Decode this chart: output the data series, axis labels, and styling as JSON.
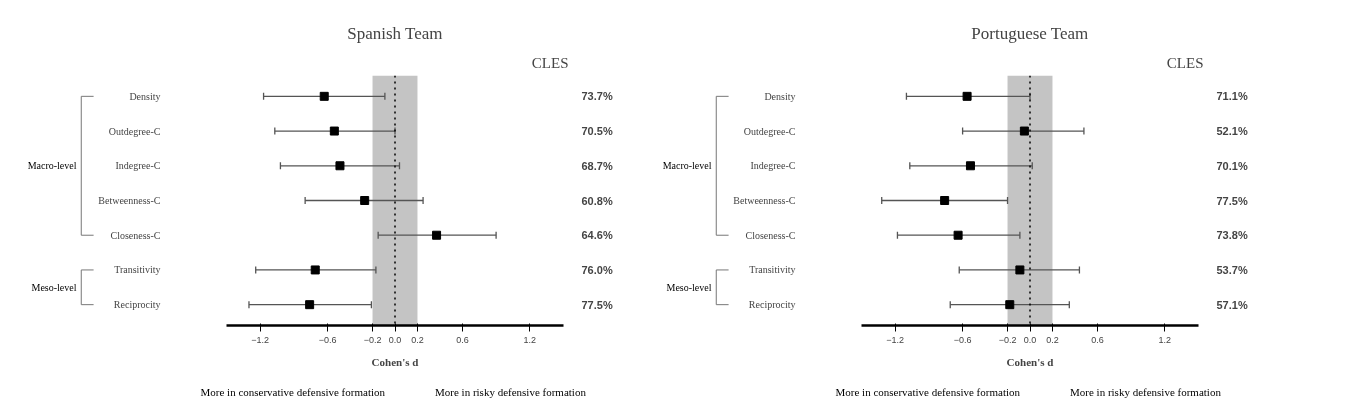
{
  "chart_data": [
    {
      "type": "scatter",
      "orientation": "horizontal",
      "title": "Spanish Team",
      "xlabel": "Cohen's d",
      "categories": [
        "Density",
        "Outdegree-C",
        "Indegree-C",
        "Betweenness-C",
        "Closeness-C",
        "Transitivity",
        "Reciprocity"
      ],
      "values": [
        -0.63,
        -0.54,
        -0.49,
        -0.27,
        0.37,
        -0.71,
        -0.76
      ],
      "errors": [
        [
          -1.17,
          -0.09
        ],
        [
          -1.07,
          0.0
        ],
        [
          -1.02,
          0.04
        ],
        [
          -0.8,
          0.25
        ],
        [
          -0.15,
          0.9
        ],
        [
          -1.24,
          -0.17
        ],
        [
          -1.3,
          -0.21
        ]
      ],
      "color": "#000000",
      "marker": "square",
      "xlim": [
        -1.5,
        1.5
      ],
      "xticks": [
        -1.2,
        -0.6,
        -0.2,
        {
          "value": 0,
          "label": "0.0"
        },
        0.2,
        0.6,
        1.2
      ],
      "bands": [
        {
          "axis": "x",
          "from": -0.2,
          "to": 0.2,
          "color": "#c4c4c4"
        }
      ],
      "ref_lines": [
        {
          "axis": "x",
          "value": 0,
          "color": "#000000",
          "line_style": "dotted"
        }
      ],
      "grid": false,
      "annotations": [
        "CLES",
        "Macro-level",
        "Meso-level",
        "More in conservative defensive formation",
        "More in risky defensive formation",
        "73.7%",
        "70.5%",
        "68.7%",
        "60.8%",
        "64.6%",
        "76.0%",
        "77.5%"
      ]
    },
    {
      "type": "scatter",
      "orientation": "horizontal",
      "title": "Portuguese Team",
      "xlabel": "Cohen's d",
      "categories": [
        "Density",
        "Outdegree-C",
        "Indegree-C",
        "Betweenness-C",
        "Closeness-C",
        "Transitivity",
        "Reciprocity"
      ],
      "values": [
        -0.56,
        -0.05,
        -0.53,
        -0.76,
        -0.64,
        -0.09,
        -0.18
      ],
      "errors": [
        [
          -1.1,
          0.0
        ],
        [
          -0.6,
          0.48
        ],
        [
          -1.07,
          0.02
        ],
        [
          -1.32,
          -0.2
        ],
        [
          -1.18,
          -0.09
        ],
        [
          -0.63,
          0.44
        ],
        [
          -0.71,
          0.35
        ]
      ],
      "color": "#000000",
      "marker": "square",
      "xlim": [
        -1.5,
        1.5
      ],
      "xticks": [
        -1.2,
        -0.6,
        -0.2,
        {
          "value": 0,
          "label": "0.0"
        },
        0.2,
        0.6,
        1.2
      ],
      "bands": [
        {
          "axis": "x",
          "from": -0.2,
          "to": 0.2,
          "color": "#c4c4c4"
        }
      ],
      "ref_lines": [
        {
          "axis": "x",
          "value": 0,
          "color": "#000000",
          "line_style": "dotted"
        }
      ],
      "grid": false,
      "annotations": [
        "CLES",
        "Macro-level",
        "Meso-level",
        "More in conservative defensive formation",
        "More in risky defensive formation",
        "71.1%",
        "52.1%",
        "70.1%",
        "77.5%",
        "73.8%",
        "53.7%",
        "57.1%"
      ]
    }
  ]
}
